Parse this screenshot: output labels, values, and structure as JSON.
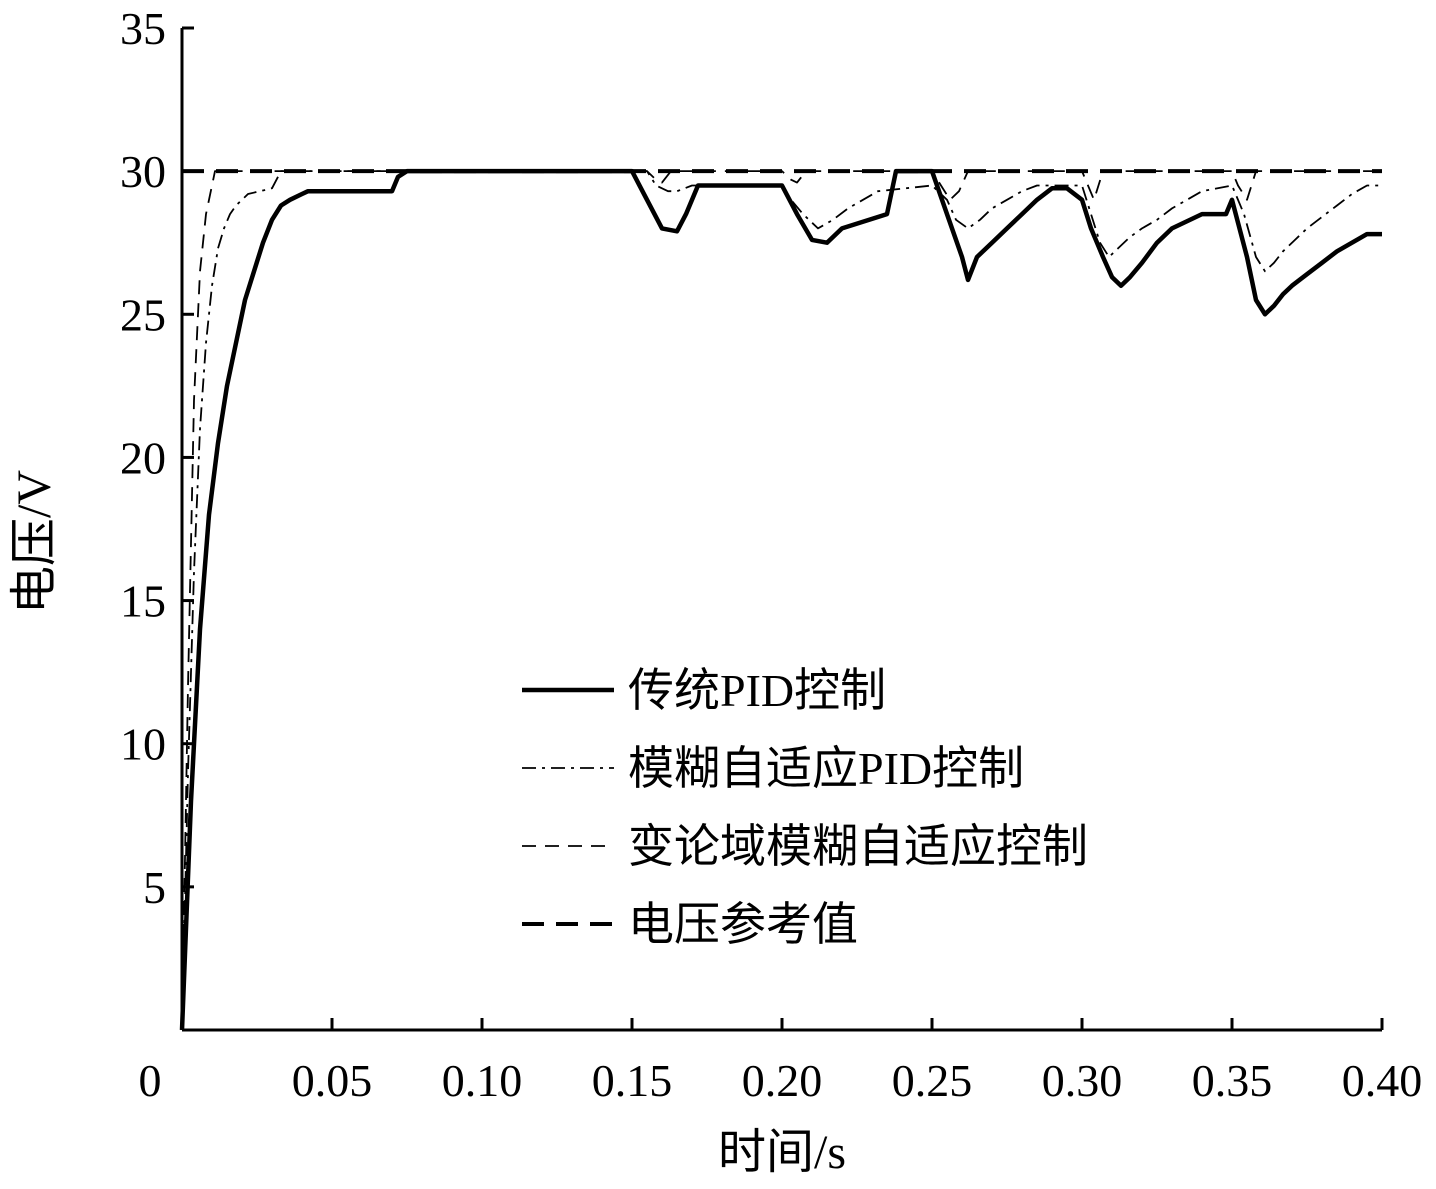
{
  "chart_data": {
    "type": "line",
    "title": "",
    "xlabel": "时间/s",
    "ylabel": "电压/V",
    "xlim": [
      0,
      0.4
    ],
    "ylim": [
      0,
      35
    ],
    "x_ticks": [
      0,
      0.05,
      0.1,
      0.15,
      0.2,
      0.25,
      0.3,
      0.35,
      0.4
    ],
    "x_tick_labels": [
      "0",
      "0.05",
      "0.10",
      "0.15",
      "0.20",
      "0.25",
      "0.30",
      "0.35",
      "0.40"
    ],
    "y_ticks": [
      5,
      10,
      15,
      20,
      25,
      30,
      35
    ],
    "y_tick_labels": [
      "5",
      "10",
      "15",
      "20",
      "25",
      "30",
      "35"
    ],
    "grid": false,
    "legend_position": "center",
    "series": [
      {
        "name": "传统PID控制",
        "style": "solid-thick",
        "color": "#000000",
        "x": [
          0,
          0.003,
          0.006,
          0.009,
          0.012,
          0.015,
          0.018,
          0.021,
          0.024,
          0.027,
          0.03,
          0.033,
          0.036,
          0.04,
          0.042,
          0.05,
          0.07,
          0.072,
          0.075,
          0.15,
          0.155,
          0.16,
          0.165,
          0.168,
          0.172,
          0.2,
          0.205,
          0.21,
          0.215,
          0.22,
          0.235,
          0.238,
          0.25,
          0.255,
          0.26,
          0.262,
          0.265,
          0.27,
          0.275,
          0.28,
          0.285,
          0.29,
          0.295,
          0.3,
          0.303,
          0.307,
          0.31,
          0.313,
          0.316,
          0.32,
          0.325,
          0.33,
          0.34,
          0.348,
          0.35,
          0.355,
          0.358,
          0.361,
          0.364,
          0.367,
          0.37,
          0.375,
          0.38,
          0.385,
          0.39,
          0.395,
          0.4
        ],
        "y": [
          0,
          8,
          14,
          18,
          20.5,
          22.5,
          24,
          25.5,
          26.5,
          27.5,
          28.3,
          28.8,
          29.0,
          29.2,
          29.3,
          29.3,
          29.3,
          29.8,
          30.0,
          30.0,
          29.0,
          28.0,
          27.9,
          28.5,
          29.5,
          29.5,
          28.5,
          27.6,
          27.5,
          28.0,
          28.5,
          30.0,
          30.0,
          28.5,
          27.0,
          26.2,
          27.0,
          27.5,
          28.0,
          28.5,
          29.0,
          29.4,
          29.4,
          29.0,
          28.0,
          27.0,
          26.3,
          26.0,
          26.3,
          26.8,
          27.5,
          28.0,
          28.5,
          28.5,
          29.0,
          27.0,
          25.5,
          25.0,
          25.3,
          25.7,
          26.0,
          26.4,
          26.8,
          27.2,
          27.5,
          27.8,
          27.8
        ]
      },
      {
        "name": "模糊自适应PID控制",
        "style": "dash-dot",
        "color": "#000000",
        "x": [
          0,
          0.002,
          0.004,
          0.006,
          0.008,
          0.01,
          0.012,
          0.014,
          0.016,
          0.018,
          0.02,
          0.022,
          0.026,
          0.03,
          0.033,
          0.06,
          0.155,
          0.158,
          0.162,
          0.165,
          0.17,
          0.2,
          0.203,
          0.207,
          0.212,
          0.217,
          0.222,
          0.227,
          0.232,
          0.25,
          0.255,
          0.258,
          0.262,
          0.266,
          0.27,
          0.275,
          0.28,
          0.285,
          0.29,
          0.3,
          0.303,
          0.306,
          0.309,
          0.312,
          0.316,
          0.32,
          0.325,
          0.33,
          0.335,
          0.34,
          0.35,
          0.354,
          0.358,
          0.361,
          0.364,
          0.367,
          0.371,
          0.375,
          0.38,
          0.385,
          0.39,
          0.395,
          0.4
        ],
        "y": [
          0,
          9,
          16,
          21,
          24,
          26,
          27.3,
          28,
          28.5,
          28.8,
          29.0,
          29.2,
          29.3,
          29.4,
          30.0,
          30.0,
          30.0,
          29.5,
          29.3,
          29.3,
          29.5,
          29.5,
          29.0,
          28.5,
          28.0,
          28.3,
          28.7,
          29.0,
          29.3,
          29.5,
          29.0,
          28.3,
          28.0,
          28.3,
          28.7,
          29.0,
          29.3,
          29.5,
          29.5,
          29.5,
          28.5,
          27.5,
          27.0,
          27.3,
          27.7,
          28.0,
          28.3,
          28.7,
          29.0,
          29.3,
          29.5,
          28.5,
          27.0,
          26.5,
          26.8,
          27.2,
          27.6,
          28.0,
          28.4,
          28.8,
          29.2,
          29.5,
          29.5
        ]
      },
      {
        "name": "变论域模糊自适应控制",
        "style": "dashed-thin",
        "color": "#000000",
        "x": [
          0,
          0.002,
          0.004,
          0.006,
          0.008,
          0.01,
          0.011,
          0.012,
          0.155,
          0.158,
          0.16,
          0.163,
          0.2,
          0.203,
          0.205,
          0.208,
          0.25,
          0.253,
          0.256,
          0.259,
          0.262,
          0.3,
          0.302,
          0.304,
          0.307,
          0.35,
          0.352,
          0.355,
          0.358,
          0.4
        ],
        "y": [
          0,
          12,
          22,
          26.5,
          28.5,
          29.5,
          30.0,
          30.0,
          30.0,
          29.7,
          29.6,
          30.0,
          30.0,
          29.7,
          29.6,
          30.0,
          30.0,
          29.5,
          29.0,
          29.3,
          30.0,
          30.0,
          29.5,
          29.0,
          30.0,
          30.0,
          29.5,
          29.0,
          30.0,
          30.0
        ]
      },
      {
        "name": "电压参考值",
        "style": "dashed-thick",
        "color": "#000000",
        "x": [
          0,
          0.4
        ],
        "y": [
          30,
          30
        ]
      }
    ]
  }
}
